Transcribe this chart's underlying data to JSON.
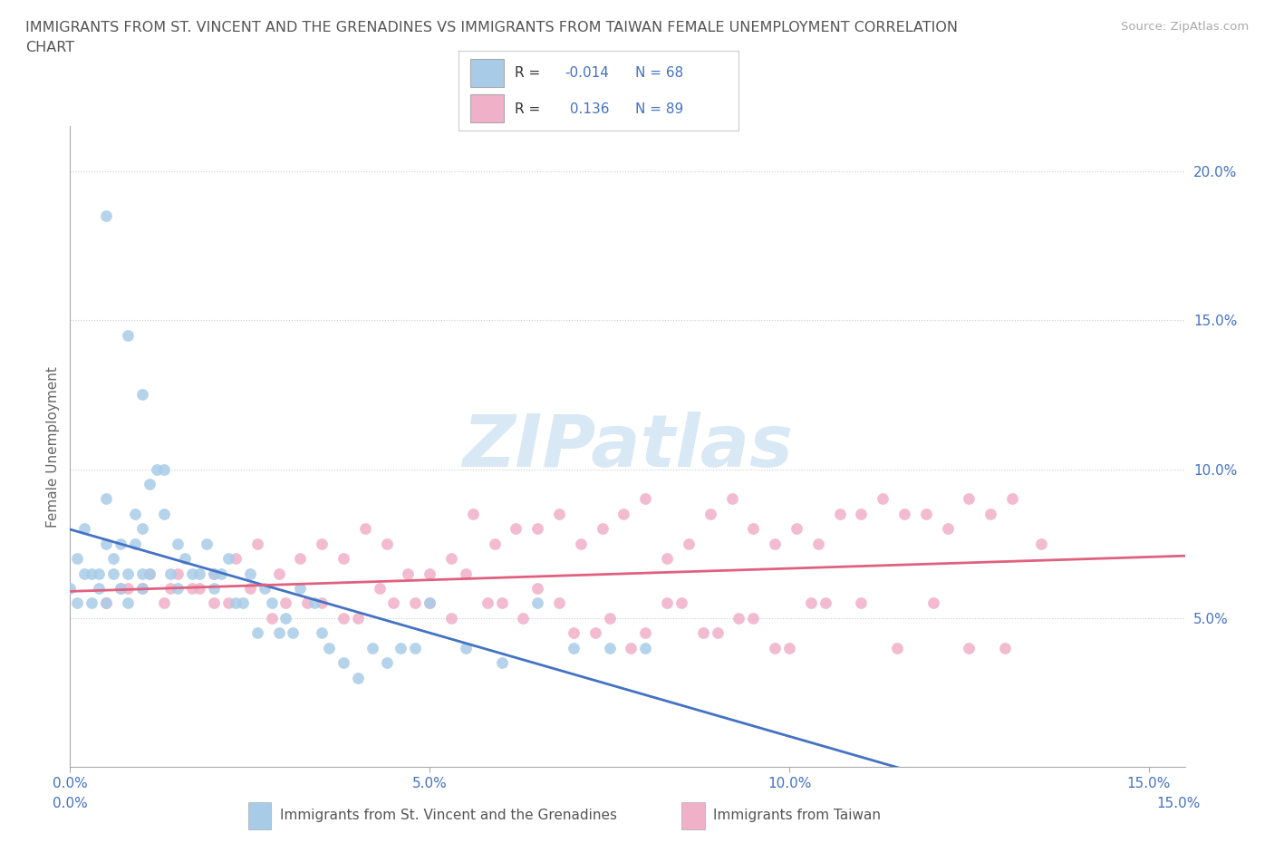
{
  "title_line1": "IMMIGRANTS FROM ST. VINCENT AND THE GRENADINES VS IMMIGRANTS FROM TAIWAN FEMALE UNEMPLOYMENT CORRELATION",
  "title_line2": "CHART",
  "source_text": "Source: ZipAtlas.com",
  "ylabel": "Female Unemployment",
  "xlim": [
    0.0,
    0.155
  ],
  "ylim": [
    0.0,
    0.215
  ],
  "xticks": [
    0.0,
    0.05,
    0.1,
    0.15
  ],
  "xtick_labels": [
    "0.0%",
    "5.0%",
    "10.0%",
    "15.0%"
  ],
  "yticks_right": [
    0.05,
    0.1,
    0.15,
    0.2
  ],
  "ytick_labels_right": [
    "5.0%",
    "10.0%",
    "15.0%",
    "20.0%"
  ],
  "background_color": "#ffffff",
  "grid_color": "#cccccc",
  "series1_color": "#a8cce8",
  "series2_color": "#f0b0c8",
  "series1_line_color": "#4472c4",
  "series2_line_color": "#e06080",
  "series1_dash_color": "#8899cc",
  "series1_label": "Immigrants from St. Vincent and the Grenadines",
  "series2_label": "Immigrants from Taiwan",
  "R1": -0.014,
  "N1": 68,
  "R2": 0.136,
  "N2": 89,
  "title_color": "#555555",
  "axis_label_color": "#4472c4",
  "watermark_text": "ZIPatlas",
  "watermark_color": "#d8e8f4",
  "series1_x": [
    0.0,
    0.001,
    0.001,
    0.002,
    0.002,
    0.003,
    0.003,
    0.004,
    0.004,
    0.005,
    0.005,
    0.005,
    0.006,
    0.006,
    0.007,
    0.007,
    0.008,
    0.008,
    0.009,
    0.009,
    0.01,
    0.01,
    0.01,
    0.011,
    0.011,
    0.012,
    0.013,
    0.013,
    0.014,
    0.015,
    0.015,
    0.016,
    0.017,
    0.018,
    0.019,
    0.02,
    0.02,
    0.021,
    0.022,
    0.023,
    0.024,
    0.025,
    0.026,
    0.027,
    0.028,
    0.029,
    0.03,
    0.031,
    0.032,
    0.034,
    0.035,
    0.036,
    0.038,
    0.04,
    0.042,
    0.044,
    0.046,
    0.048,
    0.05,
    0.055,
    0.06,
    0.065,
    0.07,
    0.075,
    0.08,
    0.005,
    0.008,
    0.01
  ],
  "series1_y": [
    0.06,
    0.055,
    0.07,
    0.065,
    0.08,
    0.065,
    0.055,
    0.06,
    0.065,
    0.075,
    0.055,
    0.09,
    0.065,
    0.07,
    0.06,
    0.075,
    0.065,
    0.055,
    0.085,
    0.075,
    0.065,
    0.08,
    0.06,
    0.065,
    0.095,
    0.1,
    0.1,
    0.085,
    0.065,
    0.06,
    0.075,
    0.07,
    0.065,
    0.065,
    0.075,
    0.06,
    0.065,
    0.065,
    0.07,
    0.055,
    0.055,
    0.065,
    0.045,
    0.06,
    0.055,
    0.045,
    0.05,
    0.045,
    0.06,
    0.055,
    0.045,
    0.04,
    0.035,
    0.03,
    0.04,
    0.035,
    0.04,
    0.04,
    0.055,
    0.04,
    0.035,
    0.055,
    0.04,
    0.04,
    0.04,
    0.185,
    0.145,
    0.125
  ],
  "series2_x": [
    0.005,
    0.008,
    0.011,
    0.014,
    0.017,
    0.02,
    0.023,
    0.026,
    0.029,
    0.032,
    0.035,
    0.038,
    0.041,
    0.044,
    0.047,
    0.05,
    0.053,
    0.056,
    0.059,
    0.062,
    0.065,
    0.068,
    0.071,
    0.074,
    0.077,
    0.08,
    0.083,
    0.086,
    0.089,
    0.092,
    0.095,
    0.098,
    0.101,
    0.104,
    0.107,
    0.11,
    0.113,
    0.116,
    0.119,
    0.122,
    0.125,
    0.128,
    0.131,
    0.01,
    0.015,
    0.02,
    0.025,
    0.03,
    0.035,
    0.04,
    0.045,
    0.05,
    0.055,
    0.06,
    0.065,
    0.07,
    0.075,
    0.08,
    0.085,
    0.09,
    0.095,
    0.1,
    0.105,
    0.11,
    0.115,
    0.12,
    0.125,
    0.13,
    0.007,
    0.013,
    0.018,
    0.022,
    0.028,
    0.033,
    0.038,
    0.043,
    0.048,
    0.053,
    0.058,
    0.063,
    0.068,
    0.073,
    0.078,
    0.083,
    0.088,
    0.093,
    0.098,
    0.103,
    0.135
  ],
  "series2_y": [
    0.055,
    0.06,
    0.065,
    0.06,
    0.06,
    0.065,
    0.07,
    0.075,
    0.065,
    0.07,
    0.075,
    0.07,
    0.08,
    0.075,
    0.065,
    0.065,
    0.07,
    0.085,
    0.075,
    0.08,
    0.08,
    0.085,
    0.075,
    0.08,
    0.085,
    0.09,
    0.07,
    0.075,
    0.085,
    0.09,
    0.08,
    0.075,
    0.08,
    0.075,
    0.085,
    0.085,
    0.09,
    0.085,
    0.085,
    0.08,
    0.09,
    0.085,
    0.09,
    0.06,
    0.065,
    0.055,
    0.06,
    0.055,
    0.055,
    0.05,
    0.055,
    0.055,
    0.065,
    0.055,
    0.06,
    0.045,
    0.05,
    0.045,
    0.055,
    0.045,
    0.05,
    0.04,
    0.055,
    0.055,
    0.04,
    0.055,
    0.04,
    0.04,
    0.06,
    0.055,
    0.06,
    0.055,
    0.05,
    0.055,
    0.05,
    0.06,
    0.055,
    0.05,
    0.055,
    0.05,
    0.055,
    0.045,
    0.04,
    0.055,
    0.045,
    0.05,
    0.04,
    0.055,
    0.075
  ]
}
